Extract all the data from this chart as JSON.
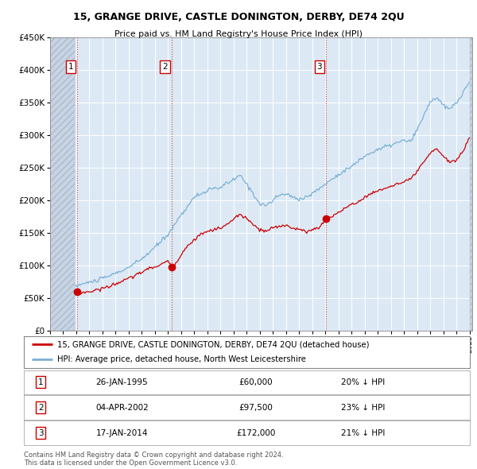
{
  "title": "15, GRANGE DRIVE, CASTLE DONINGTON, DERBY, DE74 2QU",
  "subtitle": "Price paid vs. HM Land Registry's House Price Index (HPI)",
  "ytick_values": [
    0,
    50000,
    100000,
    150000,
    200000,
    250000,
    300000,
    350000,
    400000,
    450000
  ],
  "xmin": 1993.0,
  "xmax": 2025.2,
  "ymin": 0,
  "ymax": 450000,
  "hatch_xmin": 1993.0,
  "hatch_xmax": 1994.9,
  "sale_dates": [
    1995.07,
    2002.26,
    2014.05
  ],
  "sale_prices": [
    60000,
    97500,
    172000
  ],
  "sale_labels": [
    "1",
    "2",
    "3"
  ],
  "sale_date_strs": [
    "26-JAN-1995",
    "04-APR-2002",
    "17-JAN-2014"
  ],
  "sale_price_strs": [
    "£60,000",
    "£97,500",
    "£172,000"
  ],
  "sale_hpi_strs": [
    "20% ↓ HPI",
    "23% ↓ HPI",
    "21% ↓ HPI"
  ],
  "red_line_color": "#cc0000",
  "blue_line_color": "#7ab0d4",
  "background_color": "#dce9f5",
  "legend_label_red": "15, GRANGE DRIVE, CASTLE DONINGTON, DERBY, DE74 2QU (detached house)",
  "legend_label_blue": "HPI: Average price, detached house, North West Leicestershire",
  "footer": "Contains HM Land Registry data © Crown copyright and database right 2024.\nThis data is licensed under the Open Government Licence v3.0."
}
